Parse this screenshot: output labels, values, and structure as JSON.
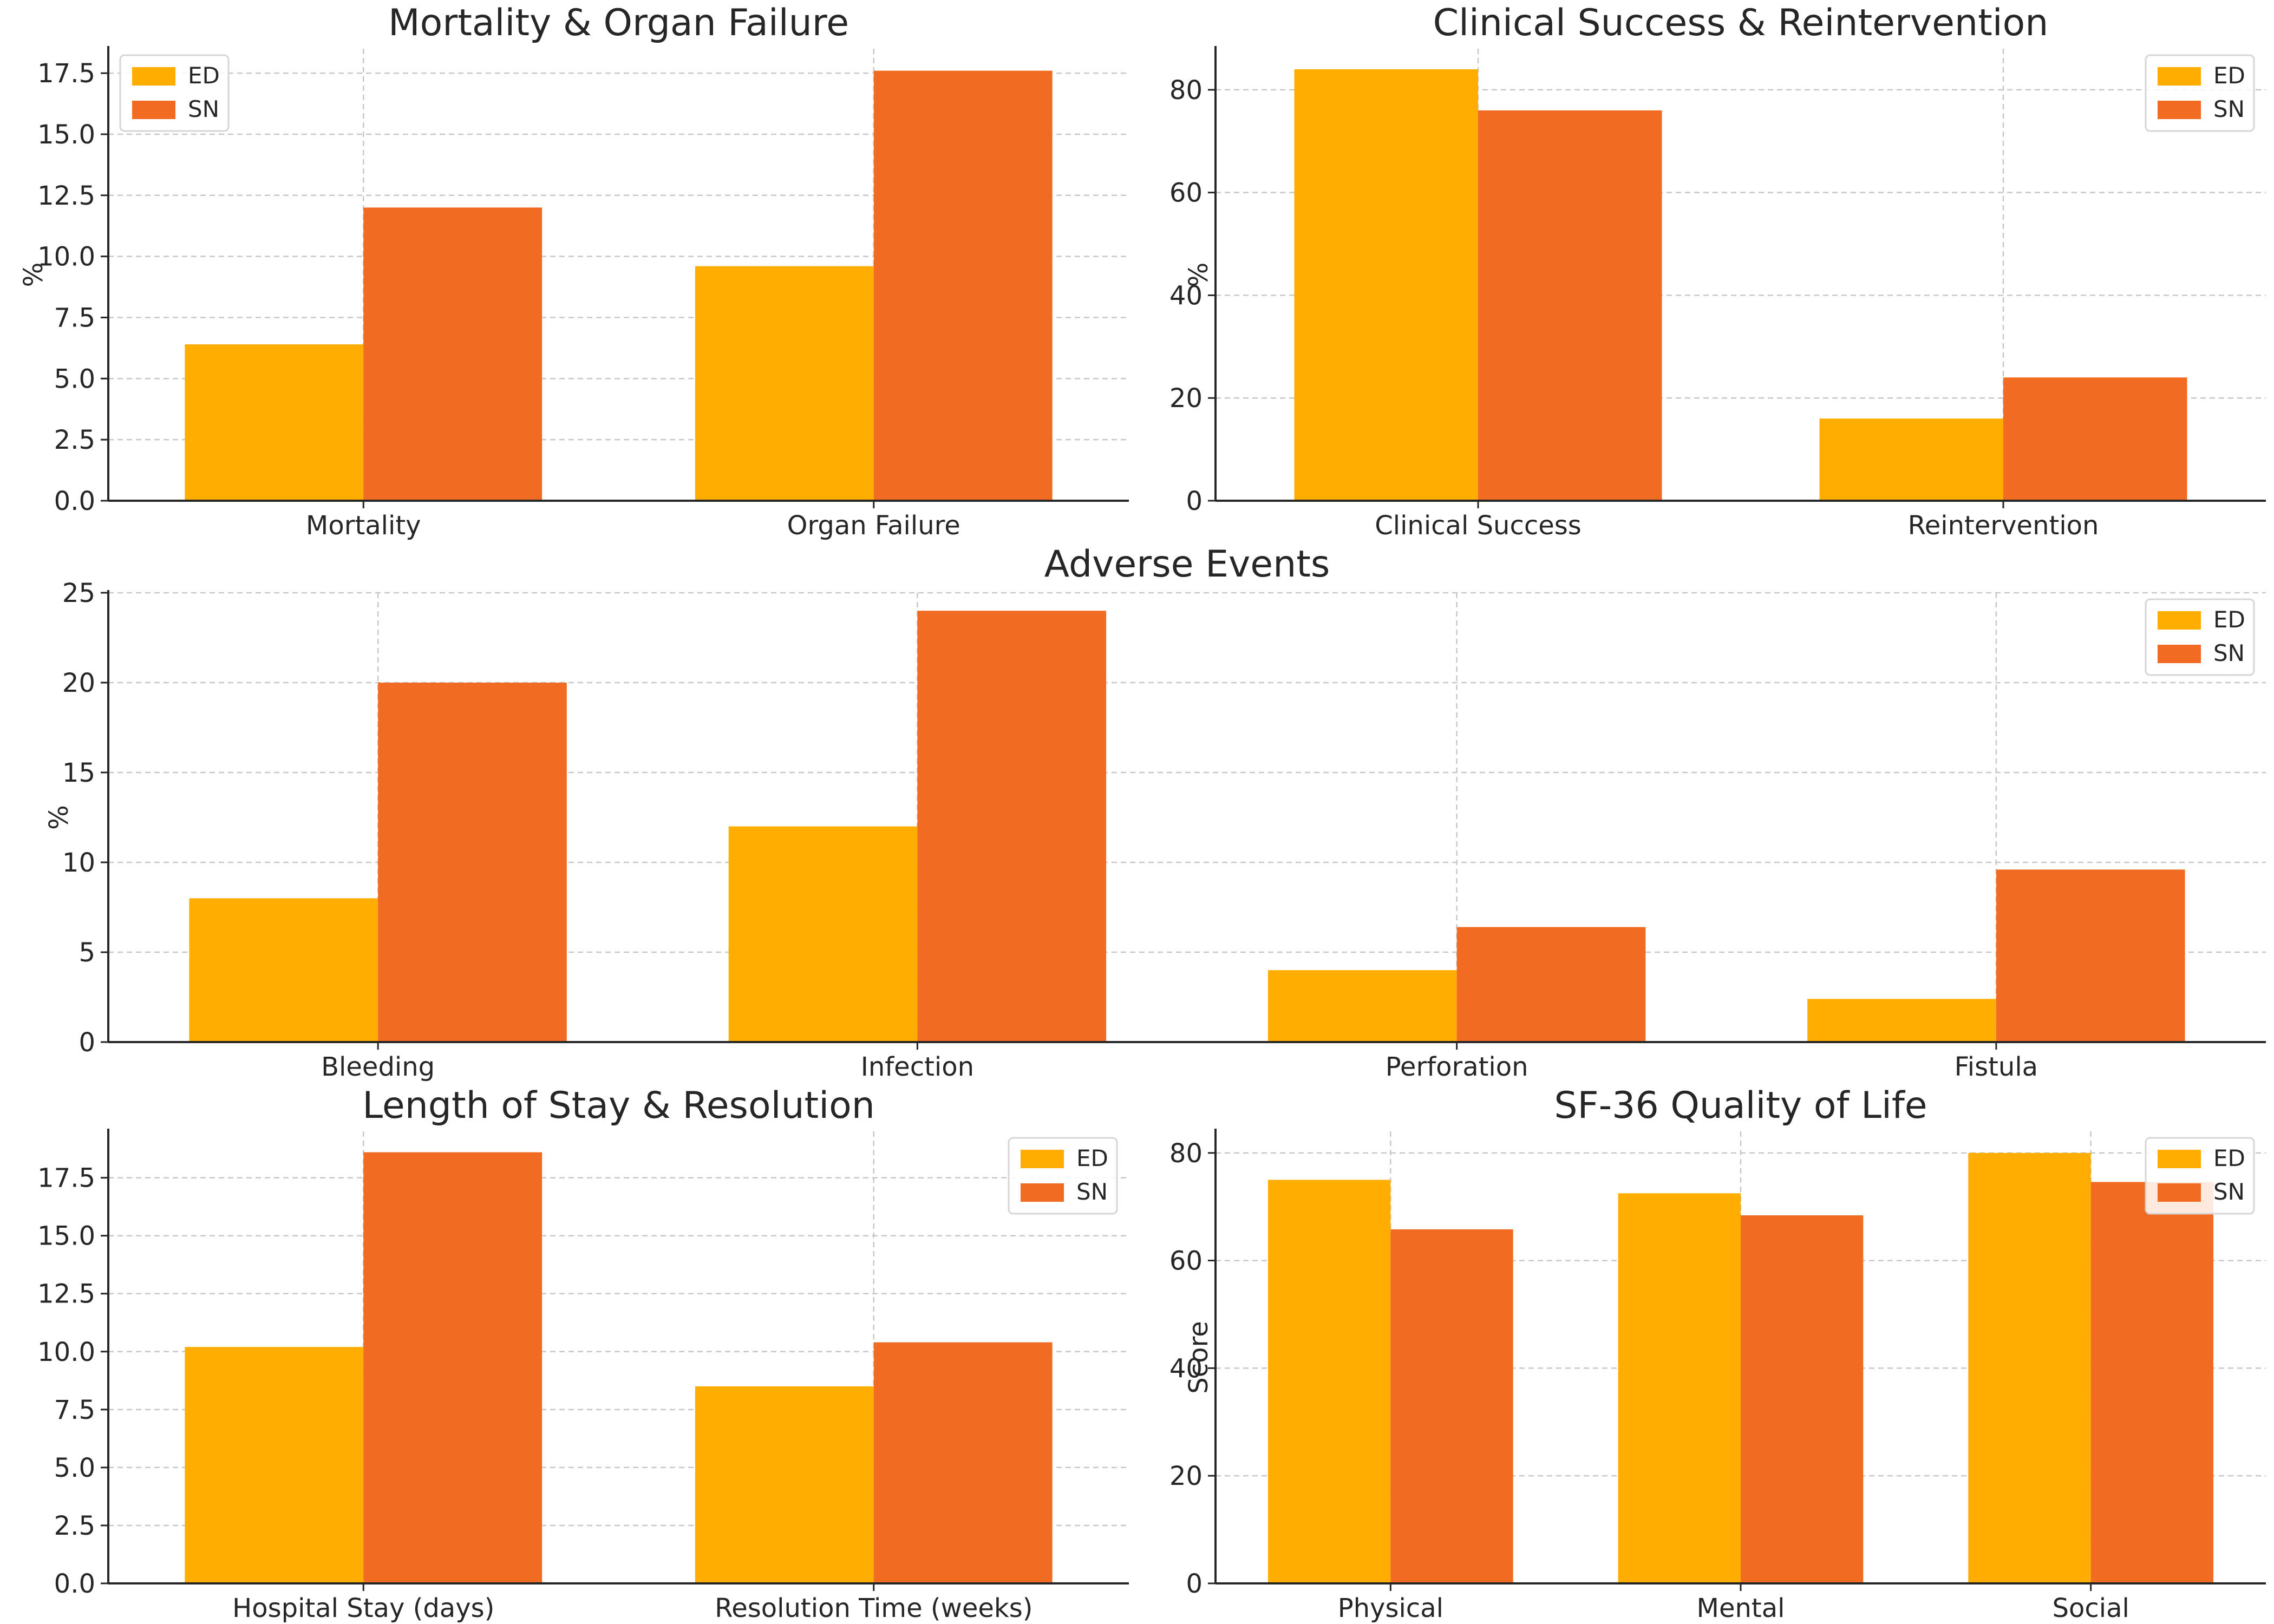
{
  "colors": {
    "ED": "#ffad00",
    "SN": "#f26b22"
  },
  "chart_data": [
    {
      "type": "bar",
      "title": "Mortality & Organ Failure",
      "ylabel": "%",
      "categories": [
        "Mortality",
        "Organ Failure"
      ],
      "series": [
        {
          "name": "ED",
          "values": [
            6.4,
            9.6
          ]
        },
        {
          "name": "SN",
          "values": [
            12.0,
            17.6
          ]
        }
      ],
      "ylim": [
        0,
        18.5
      ],
      "yticks": [
        0,
        2.5,
        5,
        7.5,
        10,
        12.5,
        15,
        17.5
      ],
      "ytick_labels": [
        "0.0",
        "2.5",
        "5.0",
        "7.5",
        "10.0",
        "12.5",
        "15.0",
        "17.5"
      ],
      "grid": true,
      "legend": "top-left"
    },
    {
      "type": "bar",
      "title": "Clinical Success & Reintervention",
      "ylabel": "%",
      "categories": [
        "Clinical Success",
        "Reintervention"
      ],
      "series": [
        {
          "name": "ED",
          "values": [
            84,
            16
          ]
        },
        {
          "name": "SN",
          "values": [
            76,
            24
          ]
        }
      ],
      "ylim": [
        0,
        88
      ],
      "yticks": [
        0,
        20,
        40,
        60,
        80
      ],
      "ytick_labels": [
        "0",
        "20",
        "40",
        "60",
        "80"
      ],
      "grid": true,
      "legend": "top-right"
    },
    {
      "type": "bar",
      "title": "Adverse Events",
      "ylabel": "%",
      "categories": [
        "Bleeding",
        "Infection",
        "Perforation",
        "Fistula"
      ],
      "series": [
        {
          "name": "ED",
          "values": [
            8,
            12,
            4,
            2.4
          ]
        },
        {
          "name": "SN",
          "values": [
            20,
            24,
            6.4,
            9.6
          ]
        }
      ],
      "ylim": [
        0,
        25
      ],
      "yticks": [
        0,
        5,
        10,
        15,
        20,
        25
      ],
      "ytick_labels": [
        "0",
        "5",
        "10",
        "15",
        "20",
        "25"
      ],
      "grid": true,
      "legend": "top-right"
    },
    {
      "type": "bar",
      "title": "Length of Stay & Resolution",
      "ylabel": "",
      "categories": [
        "Hospital Stay (days)",
        "Resolution Time (weeks)"
      ],
      "series": [
        {
          "name": "ED",
          "values": [
            10.2,
            8.5
          ]
        },
        {
          "name": "SN",
          "values": [
            18.6,
            10.4
          ]
        }
      ],
      "ylim": [
        0,
        19.5
      ],
      "yticks": [
        0,
        2.5,
        5,
        7.5,
        10,
        12.5,
        15,
        17.5
      ],
      "ytick_labels": [
        "0.0",
        "2.5",
        "5.0",
        "7.5",
        "10.0",
        "12.5",
        "15.0",
        "17.5"
      ],
      "grid": true,
      "legend": "top-right"
    },
    {
      "type": "bar",
      "title": "SF-36 Quality of Life",
      "ylabel": "Score",
      "categories": [
        "Physical",
        "Mental",
        "Social"
      ],
      "series": [
        {
          "name": "ED",
          "values": [
            75,
            72.5,
            80
          ]
        },
        {
          "name": "SN",
          "values": [
            65.8,
            68.4,
            74.6
          ]
        }
      ],
      "ylim": [
        0,
        84
      ],
      "yticks": [
        0,
        20,
        40,
        60,
        80
      ],
      "ytick_labels": [
        "0",
        "20",
        "40",
        "60",
        "80"
      ],
      "grid": true,
      "legend": "top-right"
    }
  ]
}
